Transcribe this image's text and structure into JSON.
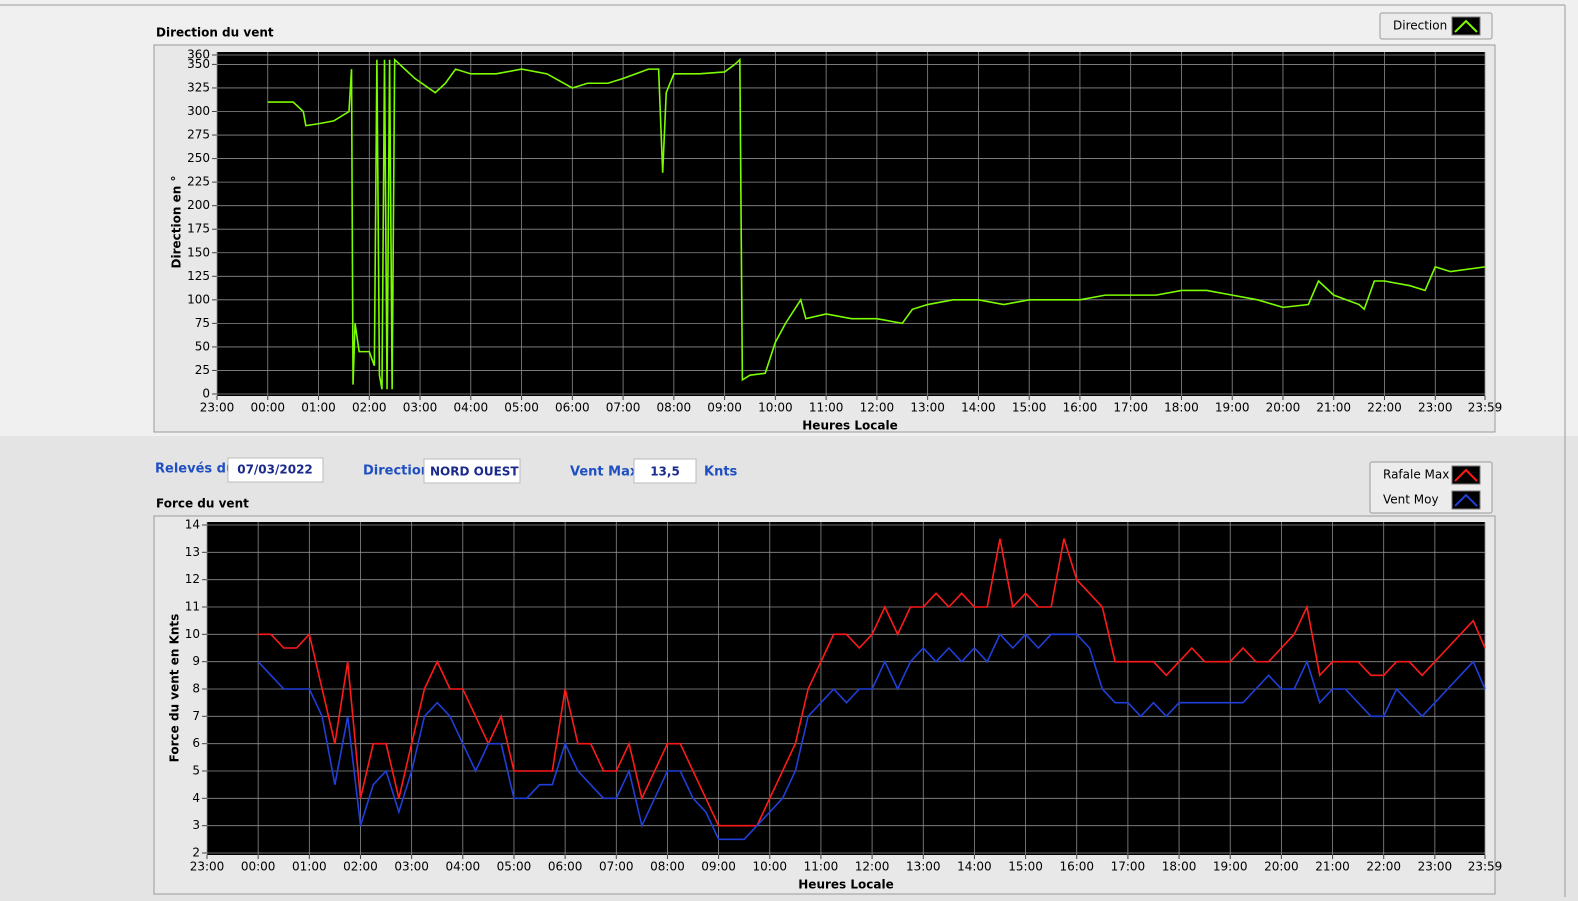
{
  "chart_data": [
    {
      "type": "line",
      "title": "Direction du vent",
      "x_label": "Heures Locale",
      "y_label": "Direction en °",
      "grid": true,
      "x": [
        0,
        0.5,
        0.7,
        0.75,
        1,
        1.3,
        1.6,
        1.65,
        1.68,
        1.72,
        1.8,
        2,
        2.1,
        2.15,
        2.2,
        2.25,
        2.3,
        2.35,
        2.4,
        2.45,
        2.5,
        2.7,
        2.9,
        3.3,
        3.5,
        3.7,
        4,
        4.5,
        5,
        5.5,
        6,
        6.3,
        6.7,
        7,
        7.5,
        7.7,
        7.78,
        7.85,
        8,
        8.5,
        9,
        9.2,
        9.3,
        9.35,
        9.5,
        9.8,
        10,
        10.2,
        10.5,
        10.6,
        11,
        11.5,
        12,
        12.5,
        12.7,
        13,
        13.5,
        14,
        14.5,
        15,
        15.5,
        16,
        16.5,
        17,
        17.5,
        18,
        18.5,
        19,
        19.5,
        20,
        20.5,
        20.7,
        21,
        21.5,
        21.6,
        21.8,
        22,
        22.5,
        22.8,
        23,
        23.3,
        23.98
      ],
      "series": [
        {
          "name": "Direction",
          "color": "#7cfc00",
          "values": [
            310,
            310,
            300,
            285,
            287,
            290,
            300,
            345,
            10,
            75,
            45,
            45,
            30,
            355,
            20,
            5,
            355,
            5,
            355,
            5,
            355,
            345,
            335,
            320,
            330,
            345,
            340,
            340,
            345,
            340,
            325,
            330,
            330,
            335,
            345,
            345,
            235,
            320,
            340,
            340,
            342,
            350,
            355,
            15,
            20,
            22,
            55,
            75,
            100,
            80,
            85,
            80,
            80,
            75,
            90,
            95,
            100,
            100,
            95,
            100,
            100,
            100,
            105,
            105,
            105,
            110,
            110,
            105,
            100,
            92,
            95,
            120,
            105,
            95,
            90,
            120,
            120,
            115,
            110,
            135,
            130,
            135
          ]
        }
      ],
      "xlim": [
        -1,
        23.98
      ],
      "xticks": [
        {
          "value": -1,
          "label": "23:00"
        },
        {
          "value": 0,
          "label": "00:00"
        },
        {
          "value": 1,
          "label": "01:00"
        },
        {
          "value": 2,
          "label": "02:00"
        },
        {
          "value": 3,
          "label": "03:00"
        },
        {
          "value": 4,
          "label": "04:00"
        },
        {
          "value": 5,
          "label": "05:00"
        },
        {
          "value": 6,
          "label": "06:00"
        },
        {
          "value": 7,
          "label": "07:00"
        },
        {
          "value": 8,
          "label": "08:00"
        },
        {
          "value": 9,
          "label": "09:00"
        },
        {
          "value": 10,
          "label": "10:00"
        },
        {
          "value": 11,
          "label": "11:00"
        },
        {
          "value": 12,
          "label": "12:00"
        },
        {
          "value": 13,
          "label": "13:00"
        },
        {
          "value": 14,
          "label": "14:00"
        },
        {
          "value": 15,
          "label": "15:00"
        },
        {
          "value": 16,
          "label": "16:00"
        },
        {
          "value": 17,
          "label": "17:00"
        },
        {
          "value": 18,
          "label": "18:00"
        },
        {
          "value": 19,
          "label": "19:00"
        },
        {
          "value": 20,
          "label": "20:00"
        },
        {
          "value": 21,
          "label": "21:00"
        },
        {
          "value": 22,
          "label": "22:00"
        },
        {
          "value": 23,
          "label": "23:00"
        },
        {
          "value": 23.98,
          "label": "23:59"
        }
      ],
      "ylim": [
        0,
        360
      ],
      "yticks": [
        0,
        25,
        50,
        75,
        100,
        125,
        150,
        175,
        200,
        225,
        250,
        275,
        300,
        325,
        350,
        360
      ]
    },
    {
      "type": "line",
      "title": "Force du vent",
      "x_label": "Heures Locale",
      "y_label": "Force du vent en Knts",
      "grid": true,
      "x": [
        0,
        0.25,
        0.5,
        0.75,
        1,
        1.25,
        1.5,
        1.75,
        2,
        2.25,
        2.5,
        2.75,
        3,
        3.25,
        3.5,
        3.75,
        4,
        4.25,
        4.5,
        4.75,
        5,
        5.25,
        5.5,
        5.75,
        6,
        6.25,
        6.5,
        6.75,
        7,
        7.25,
        7.5,
        7.75,
        8,
        8.25,
        8.5,
        8.75,
        9,
        9.25,
        9.5,
        9.75,
        10,
        10.25,
        10.5,
        10.75,
        11,
        11.25,
        11.5,
        11.75,
        12,
        12.25,
        12.5,
        12.75,
        13,
        13.25,
        13.5,
        13.75,
        14,
        14.25,
        14.5,
        14.75,
        15,
        15.25,
        15.5,
        15.75,
        16,
        16.25,
        16.5,
        16.75,
        17,
        17.25,
        17.5,
        17.75,
        18,
        18.25,
        18.5,
        18.75,
        19,
        19.25,
        19.5,
        19.75,
        20,
        20.25,
        20.5,
        20.75,
        21,
        21.25,
        21.5,
        21.75,
        22,
        22.25,
        22.5,
        22.75,
        23,
        23.25,
        23.5,
        23.75,
        23.98
      ],
      "series": [
        {
          "name": "Rafale Max",
          "color": "#ff1a1a",
          "values": [
            10,
            10,
            9.5,
            9.5,
            10,
            8,
            6,
            9,
            4,
            6,
            6,
            4,
            6,
            8,
            9,
            8,
            8,
            7,
            6,
            7,
            5,
            5,
            5,
            5,
            8,
            6,
            6,
            5,
            5,
            6,
            4,
            5,
            6,
            6,
            5,
            4,
            3,
            3,
            3,
            3,
            4,
            5,
            6,
            8,
            9,
            10,
            10,
            9.5,
            10,
            11,
            10,
            11,
            11,
            11.5,
            11,
            11.5,
            11,
            11,
            13.5,
            11,
            11.5,
            11,
            11,
            13.5,
            12,
            11.5,
            11,
            9,
            9,
            9,
            9,
            8.5,
            9,
            9.5,
            9,
            9,
            9,
            9.5,
            9,
            9,
            9.5,
            10,
            11,
            8.5,
            9,
            9,
            9,
            8.5,
            8.5,
            9,
            9,
            8.5,
            9,
            9.5,
            10,
            10.5,
            9.5
          ]
        },
        {
          "name": "Vent Moy",
          "color": "#1f3fd8",
          "values": [
            9,
            8.5,
            8,
            8,
            8,
            7,
            4.5,
            7,
            3,
            4.5,
            5,
            3.5,
            5,
            7,
            7.5,
            7,
            6,
            5,
            6,
            6,
            4,
            4,
            4.5,
            4.5,
            6,
            5,
            4.5,
            4,
            4,
            5,
            3,
            4,
            5,
            5,
            4,
            3.5,
            2.5,
            2.5,
            2.5,
            3,
            3.5,
            4,
            5,
            7,
            7.5,
            8,
            7.5,
            8,
            8,
            9,
            8,
            9,
            9.5,
            9,
            9.5,
            9,
            9.5,
            9,
            10,
            9.5,
            10,
            9.5,
            10,
            10,
            10,
            9.5,
            8,
            7.5,
            7.5,
            7,
            7.5,
            7,
            7.5,
            7.5,
            7.5,
            7.5,
            7.5,
            7.5,
            8,
            8.5,
            8,
            8,
            9,
            7.5,
            8,
            8,
            7.5,
            7,
            7,
            8,
            7.5,
            7,
            7.5,
            8,
            8.5,
            9,
            8
          ]
        }
      ],
      "xlim": [
        -1,
        23.98
      ],
      "xticks": [
        {
          "value": -1,
          "label": "23:00"
        },
        {
          "value": 0,
          "label": "00:00"
        },
        {
          "value": 1,
          "label": "01:00"
        },
        {
          "value": 2,
          "label": "02:00"
        },
        {
          "value": 3,
          "label": "03:00"
        },
        {
          "value": 4,
          "label": "04:00"
        },
        {
          "value": 5,
          "label": "05:00"
        },
        {
          "value": 6,
          "label": "06:00"
        },
        {
          "value": 7,
          "label": "07:00"
        },
        {
          "value": 8,
          "label": "08:00"
        },
        {
          "value": 9,
          "label": "09:00"
        },
        {
          "value": 10,
          "label": "10:00"
        },
        {
          "value": 11,
          "label": "11:00"
        },
        {
          "value": 12,
          "label": "12:00"
        },
        {
          "value": 13,
          "label": "13:00"
        },
        {
          "value": 14,
          "label": "14:00"
        },
        {
          "value": 15,
          "label": "15:00"
        },
        {
          "value": 16,
          "label": "16:00"
        },
        {
          "value": 17,
          "label": "17:00"
        },
        {
          "value": 18,
          "label": "18:00"
        },
        {
          "value": 19,
          "label": "19:00"
        },
        {
          "value": 20,
          "label": "20:00"
        },
        {
          "value": 21,
          "label": "21:00"
        },
        {
          "value": 22,
          "label": "22:00"
        },
        {
          "value": 23,
          "label": "23:00"
        },
        {
          "value": 23.98,
          "label": "23:59"
        }
      ],
      "ylim": [
        2,
        14
      ],
      "yticks": [
        2,
        3,
        4,
        5,
        6,
        7,
        8,
        9,
        10,
        11,
        12,
        13,
        14
      ]
    }
  ],
  "form": {
    "date_label": "Relevés du",
    "date": "07/03/2022",
    "direction_label": "Direction",
    "direction": "NORD OUEST",
    "vmax_label": "Vent Max",
    "vmax": "13,5",
    "unit": "Knts"
  }
}
